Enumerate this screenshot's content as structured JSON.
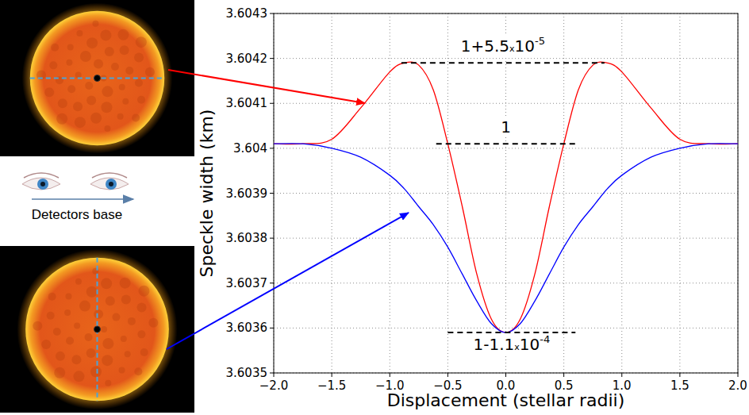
{
  "chart_data": {
    "type": "line",
    "xlabel": "Displacement (stellar radii)",
    "ylabel": "Speckle width (km)",
    "x": [
      -2,
      -1.75,
      -1.5,
      -1.25,
      -1,
      -0.875,
      -0.75,
      -0.625,
      -0.5,
      -0.375,
      -0.25,
      -0.125,
      0,
      0.125,
      0.25,
      0.375,
      0.5,
      0.625,
      0.75,
      0.875,
      1,
      1.25,
      1.5,
      1.75,
      2
    ],
    "series": [
      {
        "color": "#ff0000",
        "values": [
          3.60401,
          3.60401,
          3.60402,
          3.60409,
          3.60417,
          3.60419,
          3.604185,
          3.60413,
          3.60401,
          3.60387,
          3.60372,
          3.60362,
          3.60359,
          3.60362,
          3.60372,
          3.60387,
          3.60401,
          3.60413,
          3.604185,
          3.60419,
          3.60417,
          3.60409,
          3.60402,
          3.60401,
          3.60401
        ]
      },
      {
        "color": "#0000ff",
        "values": [
          3.60401,
          3.60401,
          3.604,
          3.60398,
          3.60394,
          3.60391,
          3.60387,
          3.60383,
          3.60378,
          3.60372,
          3.60366,
          3.60361,
          3.60359,
          3.60361,
          3.60366,
          3.60372,
          3.60378,
          3.60383,
          3.60387,
          3.60391,
          3.60394,
          3.60398,
          3.604,
          3.60401,
          3.60401
        ]
      }
    ],
    "xlim": [
      -2,
      2
    ],
    "ylim": [
      3.6035,
      3.6043
    ],
    "xticks": [
      {
        "value": -2,
        "label": "−2.0"
      },
      {
        "value": -1.5,
        "label": "−1.5"
      },
      {
        "value": -1,
        "label": "−1.0"
      },
      {
        "value": -0.5,
        "label": "−0.5"
      },
      {
        "value": 0,
        "label": "0.0"
      },
      0.5,
      {
        "value": 1,
        "label": "1.0"
      },
      1.5,
      {
        "value": 2,
        "label": "2.0"
      }
    ],
    "yticks": [
      3.6035,
      3.6036,
      3.6037,
      3.6038,
      3.6039,
      3.604,
      3.6041,
      3.6042,
      3.6043
    ],
    "grid": true,
    "annotations": [
      {
        "text": "1+5.5",
        "times": "x",
        "base": "10",
        "exponent": "-5",
        "y": 3.60419,
        "x1": -0.9,
        "x2": 0.85
      },
      {
        "text": "1",
        "y": 3.60401,
        "x1": -0.6,
        "x2": 0.6
      },
      {
        "text": "1-1.1",
        "times": "x",
        "base": "10",
        "exponent": "-4",
        "y": 3.60359,
        "x1": -0.5,
        "x2": 0.6
      }
    ]
  },
  "inset": {
    "caption": "Detectors base"
  }
}
